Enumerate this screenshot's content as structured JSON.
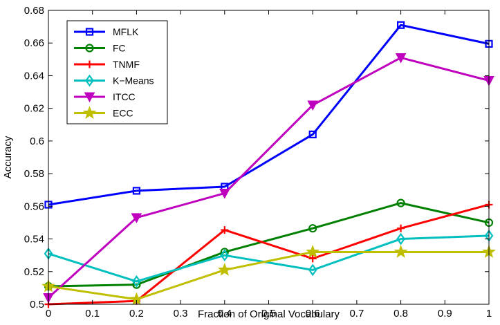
{
  "chart_data": {
    "type": "line",
    "title": "",
    "xlabel": "Fraction of Original Vocabulary",
    "ylabel": "Accuracy",
    "xlim": [
      0,
      1
    ],
    "ylim": [
      0.5,
      0.68
    ],
    "x_ticks": [
      "0",
      "0.1",
      "0.2",
      "0.3",
      "0.4",
      "0.5",
      "0.6",
      "0.7",
      "0.8",
      "0.9",
      "1"
    ],
    "y_ticks": [
      "0.5",
      "0.52",
      "0.54",
      "0.56",
      "0.58",
      "0.6",
      "0.62",
      "0.64",
      "0.66",
      "0.68"
    ],
    "x": [
      0,
      0.2,
      0.4,
      0.6,
      0.8,
      1.0
    ],
    "grid": false,
    "legend_position": "top-left",
    "series": [
      {
        "name": "MFLK",
        "color": "#0000ff",
        "marker": "square",
        "values": [
          0.561,
          0.5695,
          0.572,
          0.604,
          0.671,
          0.6595
        ]
      },
      {
        "name": "FC",
        "color": "#008000",
        "marker": "circle",
        "values": [
          0.511,
          0.512,
          0.532,
          0.5465,
          0.562,
          0.55
        ]
      },
      {
        "name": "TNMF",
        "color": "#ff0000",
        "marker": "plus",
        "values": [
          0.5,
          0.502,
          0.5455,
          0.528,
          0.5465,
          0.561
        ]
      },
      {
        "name": "K−Means",
        "color": "#00bfbf",
        "marker": "diamond",
        "values": [
          0.531,
          0.514,
          0.53,
          0.521,
          0.54,
          0.542
        ]
      },
      {
        "name": "ITCC",
        "color": "#bf00bf",
        "marker": "triangle-down",
        "values": [
          0.504,
          0.553,
          0.568,
          0.622,
          0.651,
          0.637
        ]
      },
      {
        "name": "ECC",
        "color": "#bfbf00",
        "marker": "star",
        "values": [
          0.511,
          0.503,
          0.521,
          0.532,
          0.532,
          0.532
        ]
      }
    ]
  }
}
